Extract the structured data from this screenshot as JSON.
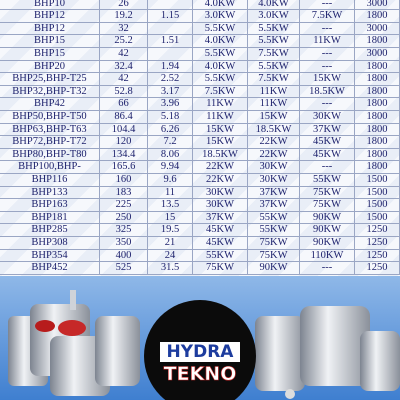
{
  "table": {
    "rows": [
      [
        "BHP10",
        "26",
        null,
        "4.0KW",
        "4.0KW",
        "---",
        "3000"
      ],
      [
        "BHP12",
        "19.2",
        "1.15",
        "3.0KW",
        "3.0KW",
        "7.5KW",
        "1800"
      ],
      [
        "BHP12",
        "32",
        null,
        "5.5KW",
        "5.5KW",
        "---",
        "3000"
      ],
      [
        "BHP15",
        "25.2",
        "1.51",
        "4.0KW",
        "5.5KW",
        "11KW",
        "1800"
      ],
      [
        "BHP15",
        "42",
        null,
        "5.5KW",
        "7.5KW",
        "---",
        "3000"
      ],
      [
        "BHP20",
        "32.4",
        "1.94",
        "4.0KW",
        "5.5KW",
        "---",
        "1800"
      ],
      [
        "BHP25,BHP-T25",
        "42",
        "2.52",
        "5.5KW",
        "7.5KW",
        "15KW",
        "1800"
      ],
      [
        "BHP32,BHP-T32",
        "52.8",
        "3.17",
        "7.5KW",
        "11KW",
        "18.5KW",
        "1800"
      ],
      [
        "BHP42",
        "66",
        "3.96",
        "11KW",
        "11KW",
        "---",
        "1800"
      ],
      [
        "BHP50,BHP-T50",
        "86.4",
        "5.18",
        "11KW",
        "15KW",
        "30KW",
        "1800"
      ],
      [
        "BHP63,BHP-T63",
        "104.4",
        "6.26",
        "15KW",
        "18.5KW",
        "37KW",
        "1800"
      ],
      [
        "BHP72,BHP-T72",
        "120",
        "7.2",
        "15KW",
        "22KW",
        "45KW",
        "1800"
      ],
      [
        "BHP80,BHP-T80",
        "134.4",
        "8.06",
        "18.5KW",
        "22KW",
        "45KW",
        "1800"
      ],
      [
        "BHP100,BHP-",
        "165.6",
        "9.94",
        "22KW",
        "30KW",
        "---",
        "1800"
      ],
      [
        "BHP116",
        "160",
        "9.6",
        "22KW",
        "30KW",
        "55KW",
        "1500"
      ],
      [
        "BHP133",
        "183",
        "11",
        "30KW",
        "37KW",
        "75KW",
        "1500"
      ],
      [
        "BHP163",
        "225",
        "13.5",
        "30KW",
        "37KW",
        "75KW",
        "1500"
      ],
      [
        "BHP181",
        "250",
        "15",
        "37KW",
        "55KW",
        "90KW",
        "1500"
      ],
      [
        "BHP285",
        "325",
        "19.5",
        "45KW",
        "55KW",
        "90KW",
        "1250"
      ],
      [
        "BHP308",
        "350",
        "21",
        "45KW",
        "75KW",
        "90KW",
        "1250"
      ],
      [
        "BHP354",
        "400",
        "24",
        "55KW",
        "75KW",
        "110KW",
        "1250"
      ],
      [
        "BHP452",
        "525",
        "31.5",
        "75KW",
        "90KW",
        "---",
        "1250"
      ]
    ]
  },
  "logo": {
    "line1": "HYDRA",
    "line2": "TEKNO"
  }
}
